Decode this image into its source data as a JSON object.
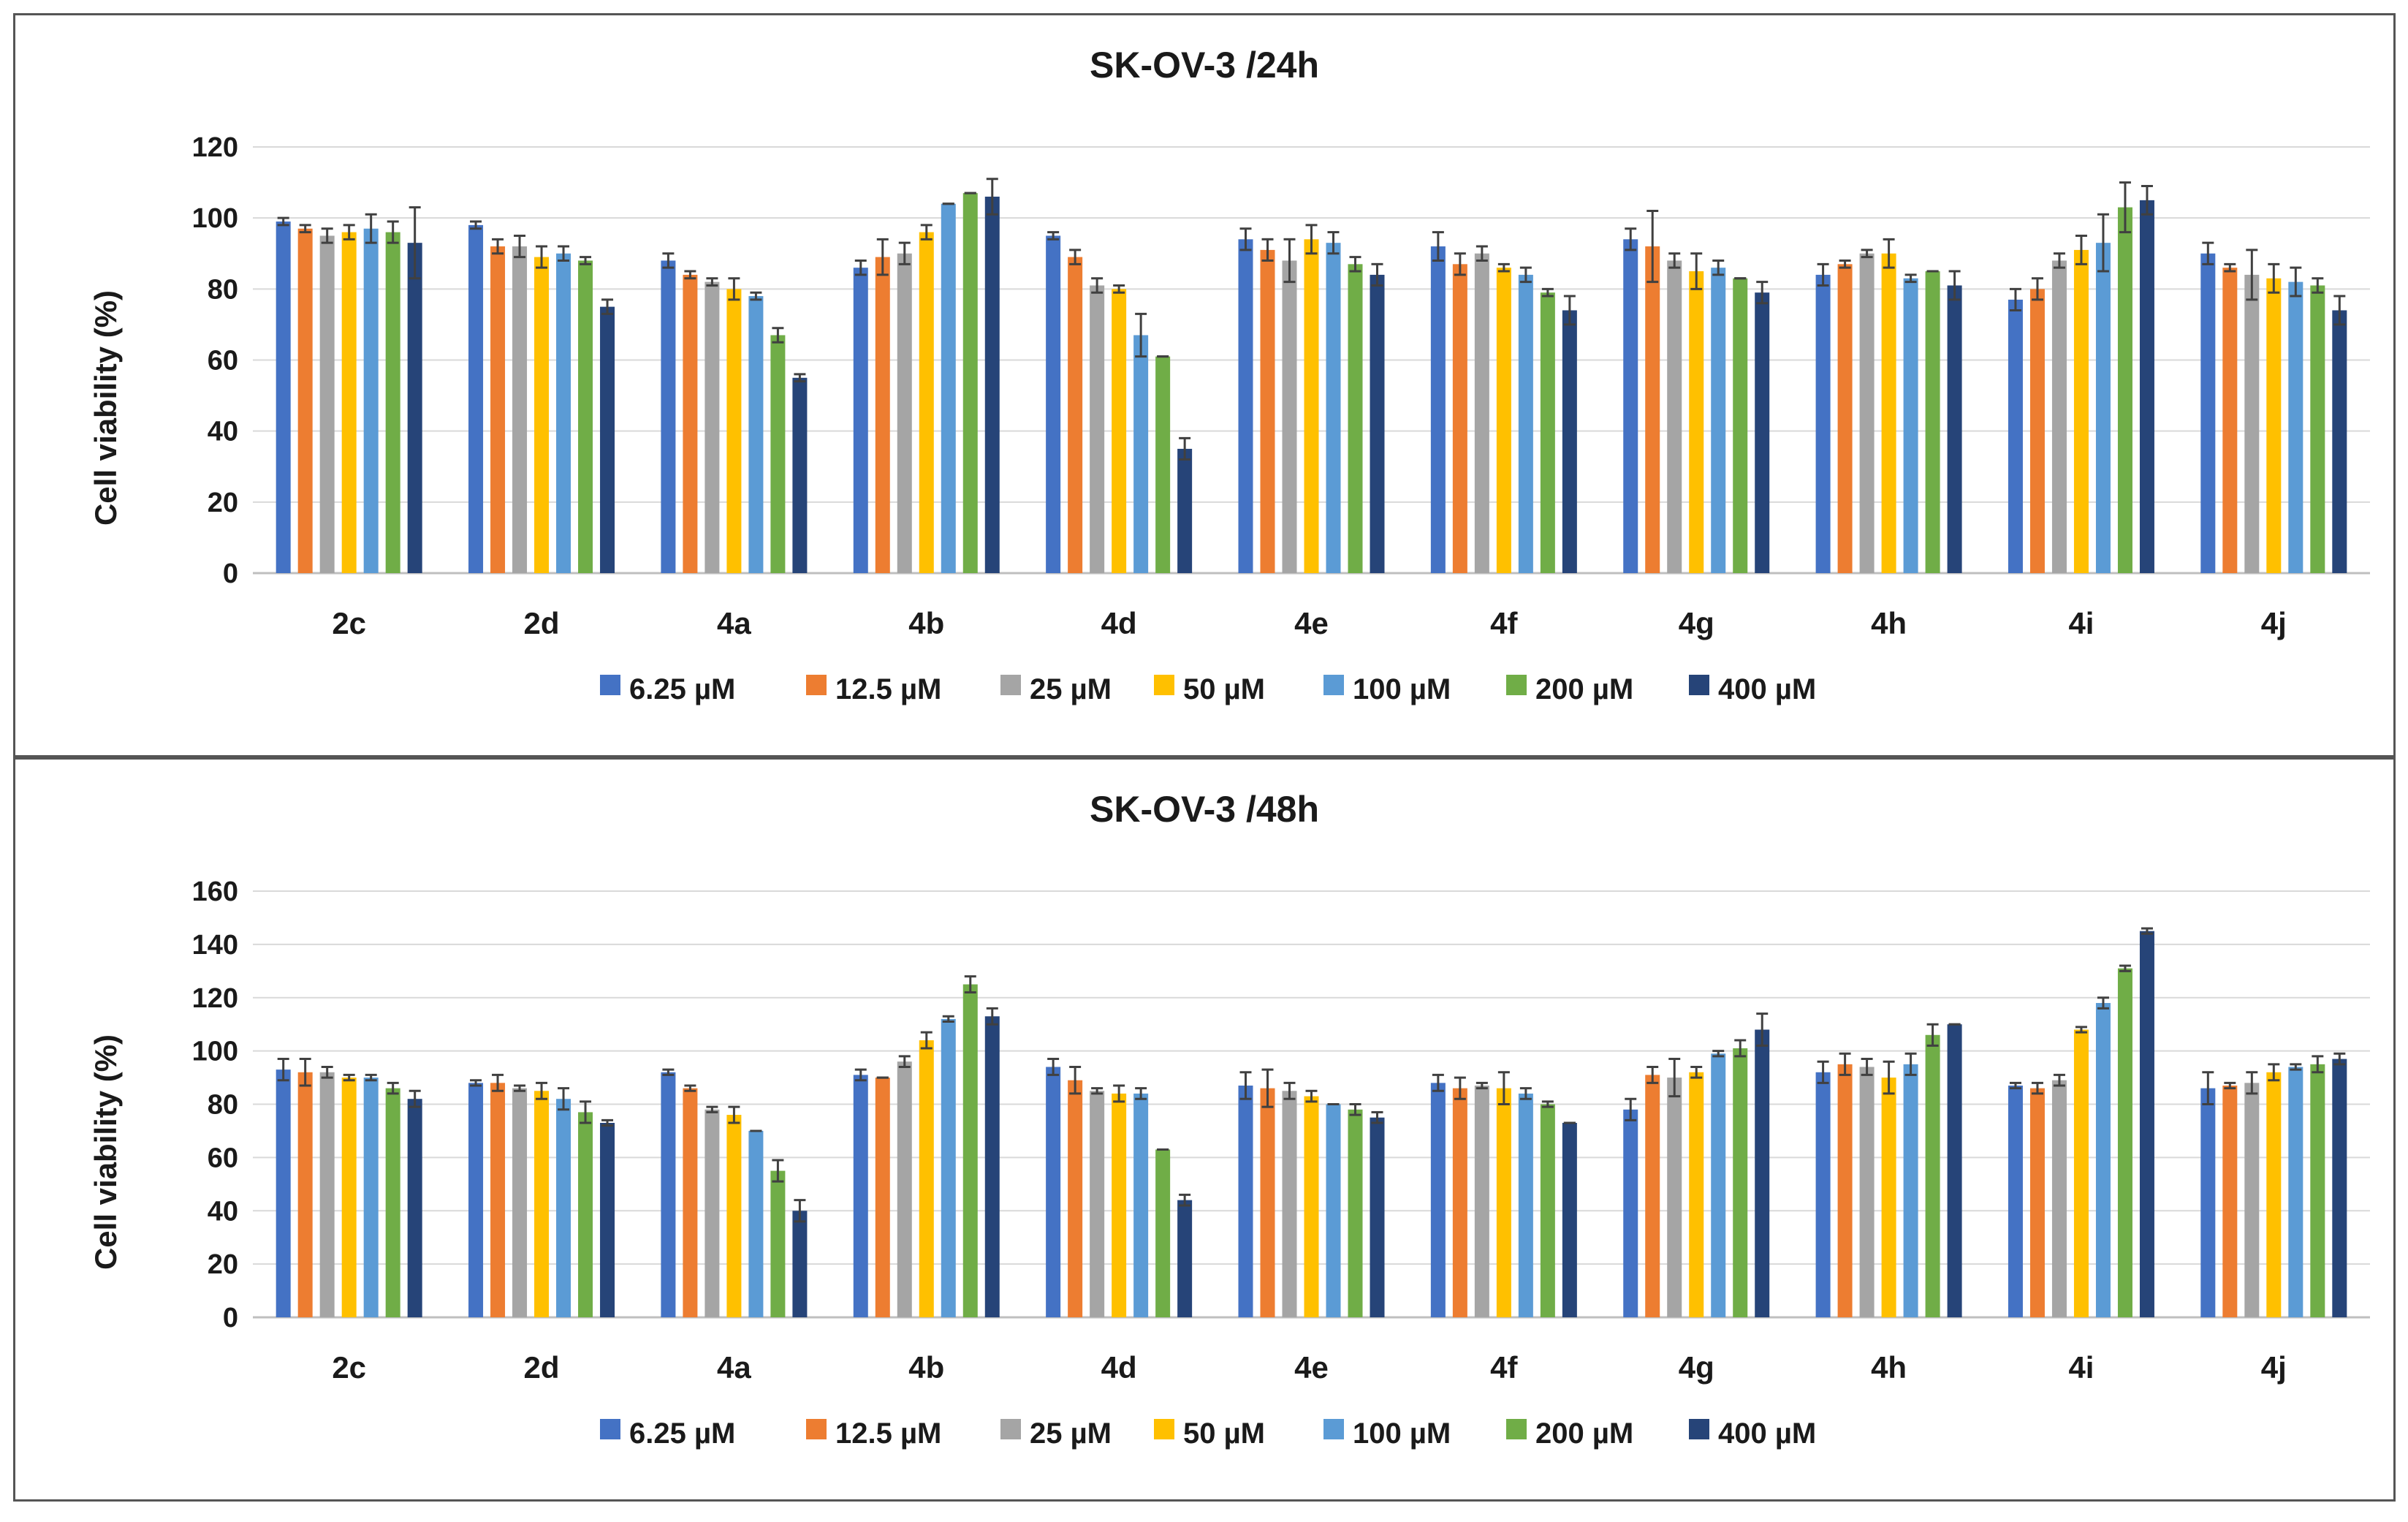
{
  "chart_data": [
    {
      "type": "bar",
      "title": "SK-OV-3 /24h",
      "xlabel": "",
      "ylabel": "Cell viability (%)",
      "ylim": [
        0,
        120
      ],
      "yticks": [
        0,
        20,
        40,
        60,
        80,
        100,
        120
      ],
      "grid": true,
      "legend_position": "bottom",
      "categories": [
        "2c",
        "2d",
        "4a",
        "4b",
        "4d",
        "4e",
        "4f",
        "4g",
        "4h",
        "4i",
        "4j"
      ],
      "series": [
        {
          "name": "6.25 µM",
          "color": "#4472C4",
          "values": [
            99,
            98,
            88,
            86,
            95,
            94,
            92,
            94,
            84,
            77,
            90
          ],
          "errors": [
            1,
            1,
            2,
            2,
            1,
            3,
            4,
            3,
            3,
            3,
            3
          ]
        },
        {
          "name": "12.5 µM",
          "color": "#ED7D31",
          "values": [
            97,
            92,
            84,
            89,
            89,
            91,
            87,
            92,
            87,
            80,
            86
          ],
          "errors": [
            1,
            2,
            1,
            5,
            2,
            3,
            3,
            10,
            1,
            3,
            1
          ]
        },
        {
          "name": "25 µM",
          "color": "#A5A5A5",
          "values": [
            95,
            92,
            82,
            90,
            81,
            88,
            90,
            88,
            90,
            88,
            84
          ],
          "errors": [
            2,
            3,
            1,
            3,
            2,
            6,
            2,
            2,
            1,
            2,
            7
          ]
        },
        {
          "name": "50 µM",
          "color": "#FFC000",
          "values": [
            96,
            89,
            80,
            96,
            80,
            94,
            86,
            85,
            90,
            91,
            83
          ],
          "errors": [
            2,
            3,
            3,
            2,
            1,
            4,
            1,
            5,
            4,
            4,
            4
          ]
        },
        {
          "name": "100 µM",
          "color": "#5B9BD5",
          "values": [
            97,
            90,
            78,
            104,
            67,
            93,
            84,
            86,
            83,
            93,
            82
          ],
          "errors": [
            4,
            2,
            1,
            0,
            6,
            3,
            2,
            2,
            1,
            8,
            4
          ]
        },
        {
          "name": "200 µM",
          "color": "#70AD47",
          "values": [
            96,
            88,
            67,
            107,
            61,
            87,
            79,
            83,
            85,
            103,
            81
          ],
          "errors": [
            3,
            1,
            2,
            0,
            0,
            2,
            1,
            0,
            0,
            7,
            2
          ]
        },
        {
          "name": "400 µM",
          "color": "#264478",
          "values": [
            93,
            75,
            55,
            106,
            35,
            84,
            74,
            79,
            81,
            105,
            74
          ],
          "errors": [
            10,
            2,
            1,
            5,
            3,
            3,
            4,
            3,
            4,
            4,
            4
          ]
        }
      ]
    },
    {
      "type": "bar",
      "title": "SK-OV-3 /48h",
      "xlabel": "",
      "ylabel": "Cell viability (%)",
      "ylim": [
        0,
        160
      ],
      "yticks": [
        0,
        20,
        40,
        60,
        80,
        100,
        120,
        140,
        160
      ],
      "grid": true,
      "legend_position": "bottom",
      "categories": [
        "2c",
        "2d",
        "4a",
        "4b",
        "4d",
        "4e",
        "4f",
        "4g",
        "4h",
        "4i",
        "4j"
      ],
      "series": [
        {
          "name": "6.25 µM",
          "color": "#4472C4",
          "values": [
            93,
            88,
            92,
            91,
            94,
            87,
            88,
            78,
            92,
            87,
            86
          ],
          "errors": [
            4,
            1,
            1,
            2,
            3,
            5,
            3,
            4,
            4,
            1,
            6
          ]
        },
        {
          "name": "12.5 µM",
          "color": "#ED7D31",
          "values": [
            92,
            88,
            86,
            90,
            89,
            86,
            86,
            91,
            95,
            86,
            87
          ],
          "errors": [
            5,
            3,
            1,
            0,
            5,
            7,
            4,
            3,
            4,
            2,
            1
          ]
        },
        {
          "name": "25 µM",
          "color": "#A5A5A5",
          "values": [
            92,
            86,
            78,
            96,
            85,
            85,
            87,
            90,
            94,
            89,
            88
          ],
          "errors": [
            2,
            1,
            1,
            2,
            1,
            3,
            1,
            7,
            3,
            2,
            4
          ]
        },
        {
          "name": "50 µM",
          "color": "#FFC000",
          "values": [
            90,
            85,
            76,
            104,
            84,
            83,
            86,
            92,
            90,
            108,
            92
          ],
          "errors": [
            1,
            3,
            3,
            3,
            3,
            2,
            6,
            2,
            6,
            1,
            3
          ]
        },
        {
          "name": "100 µM",
          "color": "#5B9BD5",
          "values": [
            90,
            82,
            70,
            112,
            84,
            80,
            84,
            99,
            95,
            118,
            94
          ],
          "errors": [
            1,
            4,
            0,
            1,
            2,
            0,
            2,
            1,
            4,
            2,
            1
          ]
        },
        {
          "name": "200 µM",
          "color": "#70AD47",
          "values": [
            86,
            77,
            55,
            125,
            63,
            78,
            80,
            101,
            106,
            131,
            95
          ],
          "errors": [
            2,
            4,
            4,
            3,
            0,
            2,
            1,
            3,
            4,
            1,
            3
          ]
        },
        {
          "name": "400 µM",
          "color": "#264478",
          "values": [
            82,
            73,
            40,
            113,
            44,
            75,
            73,
            108,
            110,
            145,
            97
          ],
          "errors": [
            3,
            1,
            4,
            3,
            2,
            2,
            0,
            6,
            0,
            1,
            2
          ]
        }
      ]
    }
  ]
}
